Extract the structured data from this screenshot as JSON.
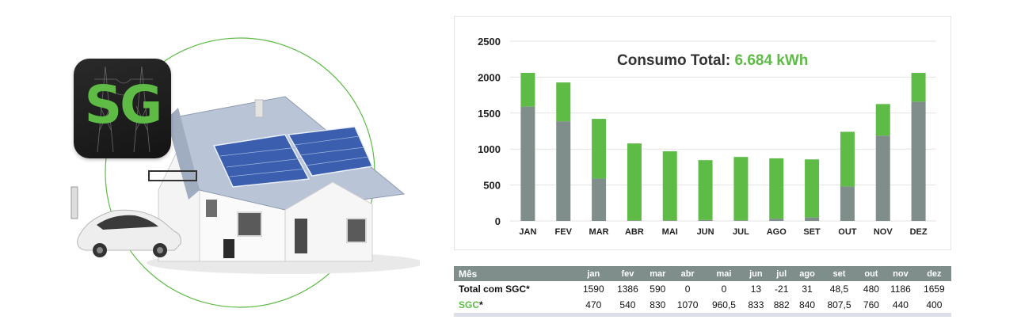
{
  "logo": {
    "text": "SG"
  },
  "chart_data": {
    "type": "bar",
    "stacked": true,
    "title": "Consumo Total:",
    "title_value": "6.684 kWh",
    "categories": [
      "JAN",
      "FEV",
      "MAR",
      "ABR",
      "MAI",
      "JUN",
      "JUL",
      "AGO",
      "SET",
      "OUT",
      "NOV",
      "DEZ"
    ],
    "series": [
      {
        "values": [
          1590,
          1386,
          590,
          0,
          0,
          13,
          -21,
          31,
          48.5,
          480,
          1186,
          1659
        ],
        "color": "#7f8e8b"
      },
      {
        "values": [
          470,
          540,
          830,
          1070,
          960.5,
          833,
          882,
          840,
          807.5,
          760,
          440,
          400
        ],
        "color": "#5dbb46"
      }
    ],
    "yticks": [
      0,
      500,
      1000,
      1500,
      2000,
      2500
    ],
    "ylim": [
      0,
      2500
    ],
    "grid": true,
    "legend": false
  },
  "table": {
    "header_label": "Mês",
    "months": [
      "jan",
      "fev",
      "mar",
      "abr",
      "mai",
      "jun",
      "jul",
      "ago",
      "set",
      "out",
      "nov",
      "dez"
    ],
    "rows": [
      {
        "label": "Total com SGC*",
        "values": [
          "1590",
          "1386",
          "590",
          "0",
          "0",
          "13",
          "-21",
          "31",
          "48,5",
          "480",
          "1186",
          "1659"
        ]
      },
      {
        "label_colored": "SGC",
        "label_suffix": "*",
        "values": [
          "470",
          "540",
          "830",
          "1070",
          "960,5",
          "833",
          "882",
          "840",
          "807,5",
          "760",
          "440",
          "400"
        ]
      }
    ]
  }
}
